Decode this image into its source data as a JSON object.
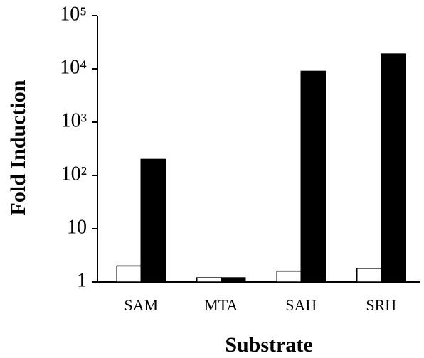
{
  "chart_data": {
    "type": "bar",
    "log_scale": true,
    "grid": false,
    "x_label": "Substrate",
    "y_label": "Fold Induction",
    "categories": [
      "SAM",
      "MTA",
      "SAH",
      "SRH"
    ],
    "series": [
      {
        "color": "#ffffff",
        "values": [
          2.0,
          1.2,
          1.6,
          1.8
        ]
      },
      {
        "color": "#000000",
        "values": [
          200,
          1.2,
          9000,
          19000
        ]
      }
    ],
    "ylim": [
      1,
      100000
    ],
    "yticks": [
      1,
      10,
      {
        "value": 100,
        "label": "10²"
      },
      {
        "value": 1000,
        "label": "10³"
      },
      {
        "value": 10000,
        "label": "10⁴"
      },
      {
        "value": 100000,
        "label": "10⁵"
      }
    ]
  }
}
